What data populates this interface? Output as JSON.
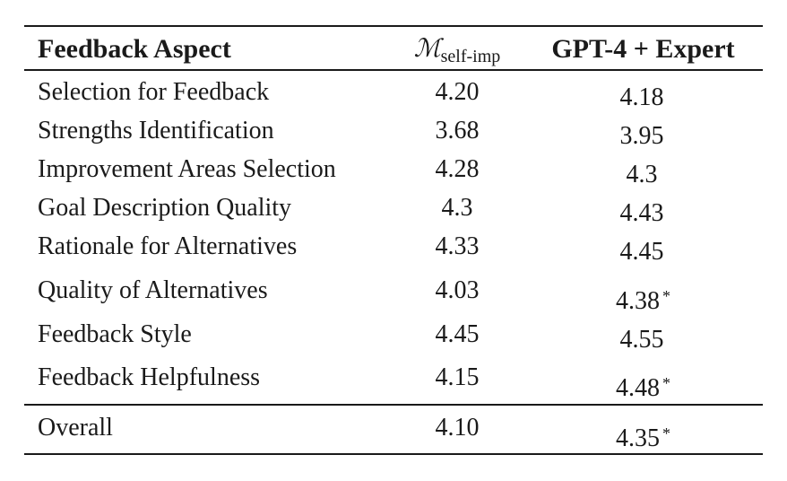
{
  "table": {
    "headers": {
      "aspect": "Feedback Aspect",
      "model_main": "ℳ",
      "model_sub": "self-imp",
      "baseline": "GPT-4 + Expert"
    },
    "rows": [
      {
        "aspect": "Selection for Feedback",
        "self_imp": "4.20",
        "gpt4_expert": "4.18",
        "sig": ""
      },
      {
        "aspect": "Strengths Identification",
        "self_imp": "3.68",
        "gpt4_expert": "3.95",
        "sig": ""
      },
      {
        "aspect": "Improvement Areas Selection",
        "self_imp": "4.28",
        "gpt4_expert": "4.3",
        "sig": ""
      },
      {
        "aspect": "Goal Description Quality",
        "self_imp": "4.3",
        "gpt4_expert": "4.43",
        "sig": ""
      },
      {
        "aspect": "Rationale for Alternatives",
        "self_imp": "4.33",
        "gpt4_expert": "4.45",
        "sig": ""
      },
      {
        "aspect": "Quality of Alternatives",
        "self_imp": "4.03",
        "gpt4_expert": "4.38",
        "sig": "*"
      },
      {
        "aspect": "Feedback Style",
        "self_imp": "4.45",
        "gpt4_expert": "4.55",
        "sig": ""
      },
      {
        "aspect": "Feedback Helpfulness",
        "self_imp": "4.15",
        "gpt4_expert": "4.48",
        "sig": "*"
      }
    ],
    "overall": {
      "aspect": "Overall",
      "self_imp": "4.10",
      "gpt4_expert": "4.35",
      "sig": "*"
    }
  }
}
